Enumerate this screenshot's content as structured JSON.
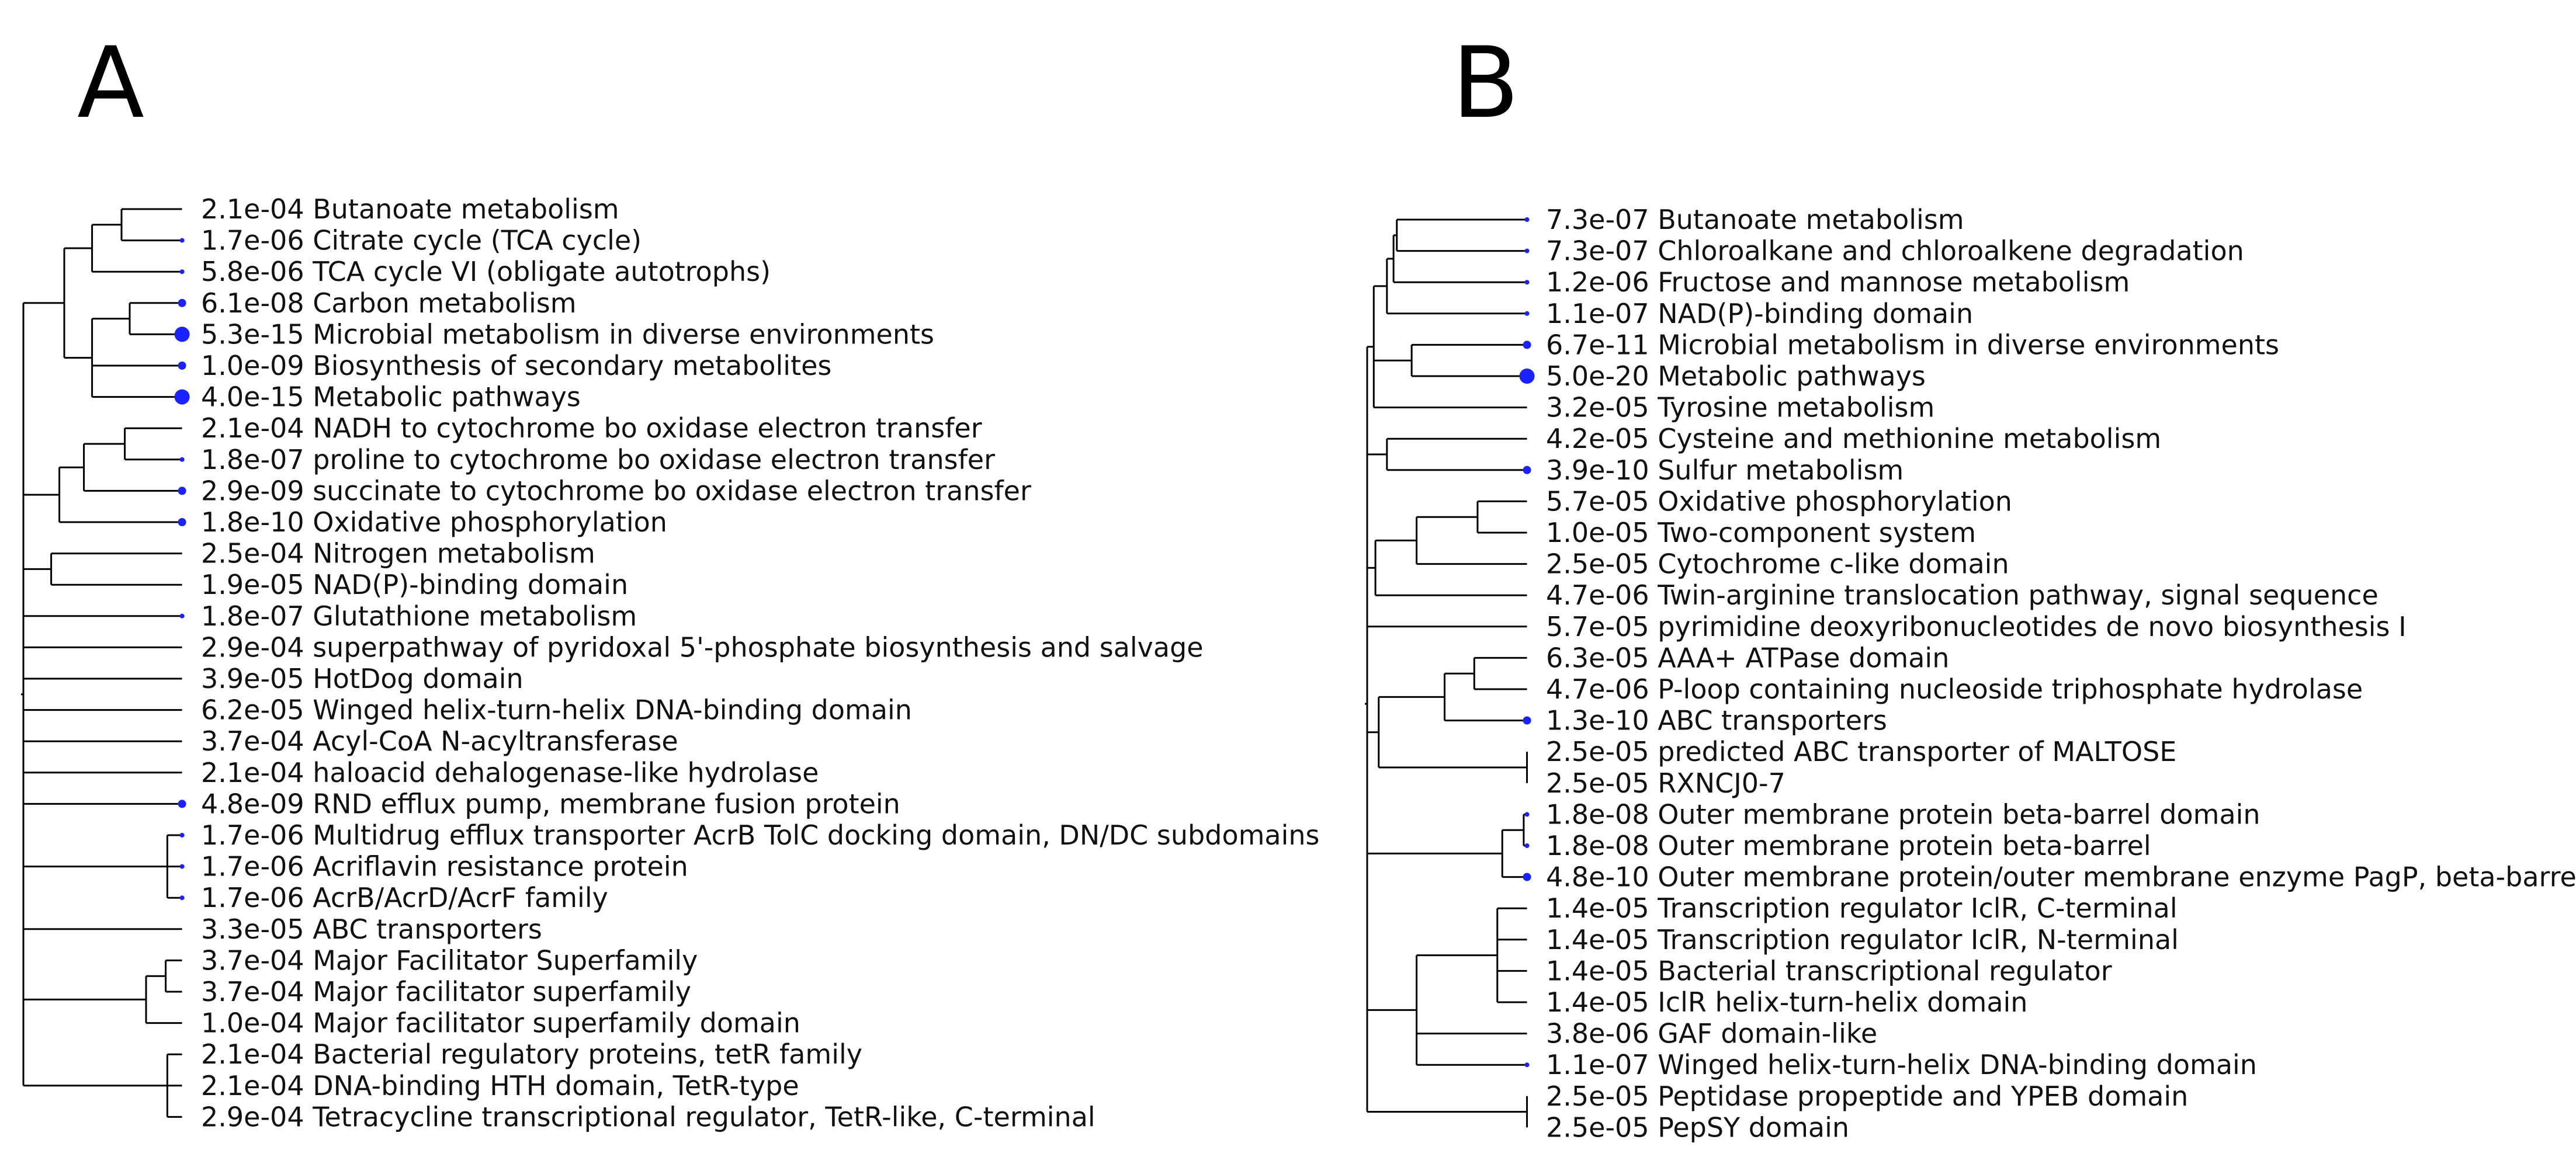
{
  "colors": {
    "branch": "#000000",
    "dot": "#1a22ff",
    "text": "#111111"
  },
  "panels": [
    {
      "letter": "A",
      "leaves": [
        {
          "pvalue": "2.1e-04",
          "label": "Butanoate metabolism",
          "dot": 0
        },
        {
          "pvalue": "1.7e-06",
          "label": "Citrate cycle (TCA cycle)",
          "dot": 1
        },
        {
          "pvalue": "5.8e-06",
          "label": "TCA cycle VI (obligate autotrophs)",
          "dot": 1
        },
        {
          "pvalue": "6.1e-08",
          "label": "Carbon metabolism",
          "dot": 2
        },
        {
          "pvalue": "5.3e-15",
          "label": "Microbial metabolism in diverse environments",
          "dot": 4
        },
        {
          "pvalue": "1.0e-09",
          "label": "Biosynthesis of secondary metabolites",
          "dot": 2
        },
        {
          "pvalue": "4.0e-15",
          "label": "Metabolic pathways",
          "dot": 4
        },
        {
          "pvalue": "2.1e-04",
          "label": "NADH to cytochrome bo oxidase electron transfer",
          "dot": 0
        },
        {
          "pvalue": "1.8e-07",
          "label": "proline to cytochrome bo oxidase electron transfer",
          "dot": 1
        },
        {
          "pvalue": "2.9e-09",
          "label": "succinate to cytochrome bo oxidase electron transfer",
          "dot": 2
        },
        {
          "pvalue": "1.8e-10",
          "label": "Oxidative phosphorylation",
          "dot": 2
        },
        {
          "pvalue": "2.5e-04",
          "label": "Nitrogen metabolism",
          "dot": 0
        },
        {
          "pvalue": "1.9e-05",
          "label": "NAD(P)-binding domain",
          "dot": 0
        },
        {
          "pvalue": "1.8e-07",
          "label": "Glutathione metabolism",
          "dot": 1
        },
        {
          "pvalue": "2.9e-04",
          "label": "superpathway of pyridoxal 5'-phosphate biosynthesis and salvage",
          "dot": 0
        },
        {
          "pvalue": "3.9e-05",
          "label": "HotDog domain",
          "dot": 0
        },
        {
          "pvalue": "6.2e-05",
          "label": "Winged helix-turn-helix DNA-binding domain",
          "dot": 0
        },
        {
          "pvalue": "3.7e-04",
          "label": "Acyl-CoA N-acyltransferase",
          "dot": 0
        },
        {
          "pvalue": "2.1e-04",
          "label": "haloacid dehalogenase-like hydrolase",
          "dot": 0
        },
        {
          "pvalue": "4.8e-09",
          "label": "RND efflux pump, membrane fusion protein",
          "dot": 2
        },
        {
          "pvalue": "1.7e-06",
          "label": "Multidrug efflux transporter AcrB TolC docking domain, DN/DC subdomains",
          "dot": 1
        },
        {
          "pvalue": "1.7e-06",
          "label": "Acriflavin resistance protein",
          "dot": 1
        },
        {
          "pvalue": "1.7e-06",
          "label": "AcrB/AcrD/AcrF family",
          "dot": 1
        },
        {
          "pvalue": "3.3e-05",
          "label": "ABC transporters",
          "dot": 0
        },
        {
          "pvalue": "3.7e-04",
          "label": "Major Facilitator Superfamily",
          "dot": 0
        },
        {
          "pvalue": "3.7e-04",
          "label": "Major facilitator superfamily",
          "dot": 0
        },
        {
          "pvalue": "1.0e-04",
          "label": "Major facilitator superfamily domain",
          "dot": 0
        },
        {
          "pvalue": "2.1e-04",
          "label": "Bacterial regulatory proteins, tetR family",
          "dot": 0
        },
        {
          "pvalue": "2.1e-04",
          "label": "DNA-binding HTH domain, TetR-type",
          "dot": 0
        },
        {
          "pvalue": "2.9e-04",
          "label": "Tetracycline transcriptional regulator, TetR-like, C-terminal",
          "dot": 0
        }
      ],
      "tree": {
        "d": 0,
        "c": [
          {
            "d": 0.25,
            "c": [
              {
                "d": 0.42,
                "c": [
                  {
                    "d": 0.6,
                    "c": [
                      {
                        "d": 0.97,
                        "c": [
                          0
                        ]
                      },
                      {
                        "d": 0.97,
                        "c": [
                          1
                        ]
                      }
                    ]
                  },
                  {
                    "d": 0.97,
                    "c": [
                      2
                    ]
                  }
                ]
              },
              {
                "d": 0.42,
                "c": [
                  {
                    "d": 0.65,
                    "c": [
                      {
                        "d": 0.97,
                        "c": [
                          3
                        ]
                      },
                      {
                        "d": 0.97,
                        "c": [
                          4
                        ]
                      }
                    ]
                  },
                  {
                    "d": 0.97,
                    "c": [
                      5
                    ]
                  },
                  {
                    "d": 0.97,
                    "c": [
                      6
                    ]
                  }
                ]
              }
            ]
          },
          {
            "d": 0.22,
            "c": [
              {
                "d": 0.37,
                "c": [
                  {
                    "d": 0.62,
                    "c": [
                      {
                        "d": 0.97,
                        "c": [
                          7
                        ]
                      },
                      {
                        "d": 0.97,
                        "c": [
                          8
                        ]
                      }
                    ]
                  },
                  {
                    "d": 0.97,
                    "c": [
                      9
                    ]
                  }
                ]
              },
              {
                "d": 0.97,
                "c": [
                  10
                ]
              }
            ]
          },
          {
            "d": 0.17,
            "c": [
              {
                "d": 0.97,
                "c": [
                  11
                ]
              },
              {
                "d": 0.97,
                "c": [
                  12
                ]
              }
            ]
          },
          {
            "d": 0.97,
            "c": [
              13
            ]
          },
          {
            "d": 0.97,
            "c": [
              14
            ]
          },
          {
            "d": 0.97,
            "c": [
              15
            ]
          },
          {
            "d": 0.97,
            "c": [
              16
            ]
          },
          {
            "d": 0.97,
            "c": [
              17
            ]
          },
          {
            "d": 0.97,
            "c": [
              18
            ]
          },
          {
            "d": 0.97,
            "c": [
              19
            ]
          },
          {
            "d": 0.88,
            "c": [
              {
                "d": 0.97,
                "c": [
                  20
                ]
              },
              {
                "d": 0.97,
                "c": [
                  21
                ]
              },
              {
                "d": 0.97,
                "c": [
                  22
                ]
              }
            ]
          },
          {
            "d": 0.97,
            "c": [
              23
            ]
          },
          {
            "d": 0.75,
            "c": [
              {
                "d": 0.87,
                "c": [
                  {
                    "d": 0.97,
                    "c": [
                      24
                    ]
                  },
                  {
                    "d": 0.97,
                    "c": [
                      25
                    ]
                  }
                ]
              },
              {
                "d": 0.97,
                "c": [
                  26
                ]
              }
            ]
          },
          {
            "d": 0.88,
            "c": [
              {
                "d": 0.97,
                "c": [
                  27
                ]
              },
              {
                "d": 0.97,
                "c": [
                  28
                ]
              },
              {
                "d": 0.97,
                "c": [
                  29
                ]
              }
            ]
          }
        ]
      }
    },
    {
      "letter": "B",
      "leaves": [
        {
          "pvalue": "7.3e-07",
          "label": "Butanoate metabolism",
          "dot": 1
        },
        {
          "pvalue": "7.3e-07",
          "label": "Chloroalkane and chloroalkene degradation",
          "dot": 1
        },
        {
          "pvalue": "1.2e-06",
          "label": "Fructose and mannose metabolism",
          "dot": 1
        },
        {
          "pvalue": "1.1e-07",
          "label": "NAD(P)-binding domain",
          "dot": 1
        },
        {
          "pvalue": "6.7e-11",
          "label": "Microbial metabolism in diverse environments",
          "dot": 2
        },
        {
          "pvalue": "5.0e-20",
          "label": "Metabolic pathways",
          "dot": 4
        },
        {
          "pvalue": "3.2e-05",
          "label": "Tyrosine metabolism",
          "dot": 0
        },
        {
          "pvalue": "4.2e-05",
          "label": "Cysteine and methionine metabolism",
          "dot": 0
        },
        {
          "pvalue": "3.9e-10",
          "label": "Sulfur metabolism",
          "dot": 2
        },
        {
          "pvalue": "5.7e-05",
          "label": "Oxidative phosphorylation",
          "dot": 0
        },
        {
          "pvalue": "1.0e-05",
          "label": "Two-component system",
          "dot": 0
        },
        {
          "pvalue": "2.5e-05",
          "label": "Cytochrome c-like domain",
          "dot": 0
        },
        {
          "pvalue": "4.7e-06",
          "label": "Twin-arginine translocation pathway, signal sequence",
          "dot": 0
        },
        {
          "pvalue": "5.7e-05",
          "label": "pyrimidine deoxyribonucleotides de novo biosynthesis I",
          "dot": 0
        },
        {
          "pvalue": "6.3e-05",
          "label": "AAA+ ATPase domain",
          "dot": 0
        },
        {
          "pvalue": "4.7e-06",
          "label": "P-loop containing nucleoside triphosphate hydrolase",
          "dot": 0
        },
        {
          "pvalue": "1.3e-10",
          "label": "ABC transporters",
          "dot": 2
        },
        {
          "pvalue": "2.5e-05",
          "label": "predicted ABC transporter of MALTOSE",
          "dot": 0
        },
        {
          "pvalue": "2.5e-05",
          "label": "RXNCJ0-7",
          "dot": 0
        },
        {
          "pvalue": "1.8e-08",
          "label": "Outer membrane protein beta-barrel domain",
          "dot": 1
        },
        {
          "pvalue": "1.8e-08",
          "label": "Outer membrane protein beta-barrel",
          "dot": 1
        },
        {
          "pvalue": "4.8e-10",
          "label": "Outer membrane protein/outer membrane enzyme PagP,  beta-barrel",
          "dot": 2
        },
        {
          "pvalue": "1.4e-05",
          "label": "Transcription regulator IclR, C-terminal",
          "dot": 0
        },
        {
          "pvalue": "1.4e-05",
          "label": "Transcription regulator IclR, N-terminal",
          "dot": 0
        },
        {
          "pvalue": "1.4e-05",
          "label": "Bacterial transcriptional regulator",
          "dot": 0
        },
        {
          "pvalue": "1.4e-05",
          "label": "IclR helix-turn-helix domain",
          "dot": 0
        },
        {
          "pvalue": "3.8e-06",
          "label": "GAF domain-like",
          "dot": 0
        },
        {
          "pvalue": "1.1e-07",
          "label": "Winged helix-turn-helix DNA-binding domain",
          "dot": 1
        },
        {
          "pvalue": "2.5e-05",
          "label": "Peptidase propeptide and YPEB domain",
          "dot": 0
        },
        {
          "pvalue": "2.5e-05",
          "label": "PepSY domain",
          "dot": 0
        }
      ],
      "tree": {
        "d": 0,
        "c": [
          {
            "d": 0.04,
            "c": [
              {
                "d": 0.12,
                "c": [
                  {
                    "d": 0.16,
                    "c": [
                      {
                        "d": 0.18,
                        "c": [
                          {
                            "d": 0.97,
                            "c": [
                              0
                            ]
                          },
                          {
                            "d": 0.97,
                            "c": [
                              1
                            ]
                          }
                        ]
                      },
                      {
                        "d": 0.97,
                        "c": [
                          2
                        ]
                      }
                    ]
                  },
                  {
                    "d": 0.97,
                    "c": [
                      3
                    ]
                  }
                ]
              },
              {
                "d": 0.27,
                "c": [
                  {
                    "d": 0.97,
                    "c": [
                      4
                    ]
                  },
                  {
                    "d": 0.97,
                    "c": [
                      5
                    ]
                  }
                ]
              },
              {
                "d": 0.97,
                "c": [
                  6
                ]
              }
            ]
          },
          {
            "d": 0.12,
            "c": [
              {
                "d": 0.97,
                "c": [
                  7
                ]
              },
              {
                "d": 0.97,
                "c": [
                  8
                ]
              }
            ]
          },
          {
            "d": 0.05,
            "c": [
              {
                "d": 0.3,
                "c": [
                  {
                    "d": 0.67,
                    "c": [
                      {
                        "d": 0.97,
                        "c": [
                          9
                        ]
                      },
                      {
                        "d": 0.97,
                        "c": [
                          10
                        ]
                      }
                    ]
                  },
                  {
                    "d": 0.97,
                    "c": [
                      11
                    ]
                  }
                ]
              },
              {
                "d": 0.97,
                "c": [
                  12
                ]
              }
            ]
          },
          {
            "d": 0.97,
            "c": [
              13
            ]
          },
          {
            "d": 0.07,
            "c": [
              {
                "d": 0.47,
                "c": [
                  {
                    "d": 0.65,
                    "c": [
                      {
                        "d": 0.97,
                        "c": [
                          14
                        ]
                      },
                      {
                        "d": 0.97,
                        "c": [
                          15
                        ]
                      }
                    ]
                  },
                  {
                    "d": 0.97,
                    "c": [
                      16
                    ]
                  }
                ]
              },
              {
                "d": 0.97,
                "c": [
                  {
                    "d": 0.97,
                    "c": [
                      17
                    ]
                  },
                  {
                    "d": 0.97,
                    "c": [
                      18
                    ]
                  }
                ]
              }
            ]
          },
          {
            "d": 0.82,
            "c": [
              {
                "d": 0.95,
                "c": [
                  {
                    "d": 0.97,
                    "c": [
                      19
                    ]
                  },
                  {
                    "d": 0.97,
                    "c": [
                      20
                    ]
                  }
                ]
              },
              {
                "d": 0.97,
                "c": [
                  21
                ]
              }
            ]
          },
          {
            "d": 0,
            "c": [
              {
                "d": 0.3,
                "c": [
                  {
                    "d": 0.79,
                    "c": [
                      {
                        "d": 0.97,
                        "c": [
                          22
                        ]
                      },
                      {
                        "d": 0.97,
                        "c": [
                          23
                        ]
                      },
                      {
                        "d": 0.97,
                        "c": [
                          24
                        ]
                      },
                      {
                        "d": 0.97,
                        "c": [
                          25
                        ]
                      }
                    ]
                  },
                  {
                    "d": 0.97,
                    "c": [
                      26
                    ]
                  },
                  {
                    "d": 0.97,
                    "c": [
                      27
                    ]
                  }
                ]
              },
              {
                "d": 0.97,
                "c": [
                  {
                    "d": 0.97,
                    "c": [
                      28
                    ]
                  },
                  {
                    "d": 0.97,
                    "c": [
                      29
                    ]
                  }
                ]
              }
            ]
          }
        ]
      }
    }
  ]
}
